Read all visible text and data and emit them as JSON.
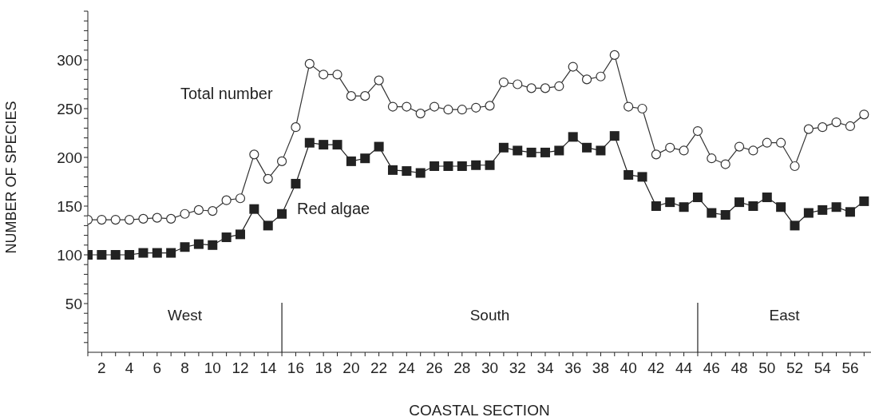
{
  "chart_data": {
    "type": "line",
    "xlabel": "COASTAL SECTION",
    "ylabel": "NUMBER OF SPECIES",
    "x": [
      1,
      2,
      3,
      4,
      5,
      6,
      7,
      8,
      9,
      10,
      11,
      12,
      13,
      14,
      15,
      16,
      17,
      18,
      19,
      20,
      21,
      22,
      23,
      24,
      25,
      26,
      27,
      28,
      29,
      30,
      31,
      32,
      33,
      34,
      35,
      36,
      37,
      38,
      39,
      40,
      41,
      42,
      43,
      44,
      45,
      46,
      47,
      48,
      49,
      50,
      51,
      52,
      53,
      54,
      55,
      56,
      57
    ],
    "series": [
      {
        "name": "Total number",
        "color": "#333333",
        "marker": "circle",
        "values": [
          136,
          136,
          136,
          136,
          137,
          138,
          137,
          142,
          146,
          145,
          156,
          158,
          203,
          178,
          196,
          231,
          296,
          285,
          285,
          263,
          263,
          279,
          252,
          252,
          245,
          252,
          249,
          249,
          251,
          253,
          277,
          275,
          271,
          271,
          273,
          293,
          280,
          283,
          305,
          252,
          250,
          203,
          210,
          207,
          227,
          199,
          193,
          211,
          207,
          215,
          215,
          191,
          229,
          231,
          236,
          232,
          244
        ]
      },
      {
        "name": "Red algae",
        "color": "#222222",
        "marker": "square",
        "values": [
          100,
          100,
          100,
          100,
          102,
          102,
          102,
          108,
          111,
          110,
          118,
          121,
          147,
          130,
          142,
          173,
          215,
          213,
          213,
          196,
          199,
          211,
          187,
          186,
          184,
          191,
          191,
          191,
          192,
          192,
          210,
          207,
          205,
          205,
          207,
          221,
          210,
          207,
          222,
          182,
          180,
          150,
          154,
          149,
          159,
          143,
          141,
          154,
          150,
          159,
          149,
          130,
          143,
          146,
          149,
          144,
          155
        ]
      }
    ],
    "xlim": [
      1,
      57.5
    ],
    "xticks": [
      {
        "value": 1,
        "label": null
      },
      2,
      {
        "value": 3,
        "label": null
      },
      4,
      {
        "value": 5,
        "label": null
      },
      6,
      {
        "value": 7,
        "label": null
      },
      8,
      {
        "value": 9,
        "label": null
      },
      10,
      {
        "value": 11,
        "label": null
      },
      12,
      {
        "value": 13,
        "label": null
      },
      14,
      {
        "value": 15,
        "label": null
      },
      16,
      {
        "value": 17,
        "label": null
      },
      18,
      {
        "value": 19,
        "label": null
      },
      20,
      {
        "value": 21,
        "label": null
      },
      22,
      {
        "value": 23,
        "label": null
      },
      24,
      {
        "value": 25,
        "label": null
      },
      26,
      {
        "value": 27,
        "label": null
      },
      28,
      {
        "value": 29,
        "label": null
      },
      30,
      {
        "value": 31,
        "label": null
      },
      32,
      {
        "value": 33,
        "label": null
      },
      34,
      {
        "value": 35,
        "label": null
      },
      36,
      {
        "value": 37,
        "label": null
      },
      38,
      {
        "value": 39,
        "label": null
      },
      40,
      {
        "value": 41,
        "label": null
      },
      42,
      {
        "value": 43,
        "label": null
      },
      44,
      {
        "value": 45,
        "label": null
      },
      46,
      {
        "value": 47,
        "label": null
      },
      48,
      {
        "value": 49,
        "label": null
      },
      50,
      {
        "value": 51,
        "label": null
      },
      52,
      {
        "value": 53,
        "label": null
      },
      54,
      {
        "value": 55,
        "label": null
      },
      56,
      {
        "value": 57,
        "label": null
      }
    ],
    "ylim": [
      0,
      350
    ],
    "yticks": [
      {
        "value": 10,
        "label": null
      },
      {
        "value": 20,
        "label": null
      },
      {
        "value": 30,
        "label": null
      },
      {
        "value": 40,
        "label": null
      },
      50,
      {
        "value": 60,
        "label": null
      },
      {
        "value": 70,
        "label": null
      },
      {
        "value": 80,
        "label": null
      },
      {
        "value": 90,
        "label": null
      },
      100,
      {
        "value": 110,
        "label": null
      },
      {
        "value": 120,
        "label": null
      },
      {
        "value": 130,
        "label": null
      },
      {
        "value": 140,
        "label": null
      },
      150,
      {
        "value": 160,
        "label": null
      },
      {
        "value": 170,
        "label": null
      },
      {
        "value": 180,
        "label": null
      },
      {
        "value": 190,
        "label": null
      },
      200,
      {
        "value": 210,
        "label": null
      },
      {
        "value": 220,
        "label": null
      },
      {
        "value": 230,
        "label": null
      },
      {
        "value": 240,
        "label": null
      },
      250,
      {
        "value": 260,
        "label": null
      },
      {
        "value": 270,
        "label": null
      },
      {
        "value": 280,
        "label": null
      },
      {
        "value": 290,
        "label": null
      },
      300,
      {
        "value": 310,
        "label": null
      },
      {
        "value": 320,
        "label": null
      },
      {
        "value": 330,
        "label": null
      },
      {
        "value": 340,
        "label": null
      },
      {
        "value": 350,
        "label": null
      }
    ],
    "ref_lines": [
      {
        "axis": "x",
        "value": 15
      },
      {
        "axis": "x",
        "value": 45
      }
    ],
    "annotations": [
      "West",
      "South",
      "East"
    ],
    "legend": false,
    "line_style": "solid"
  }
}
